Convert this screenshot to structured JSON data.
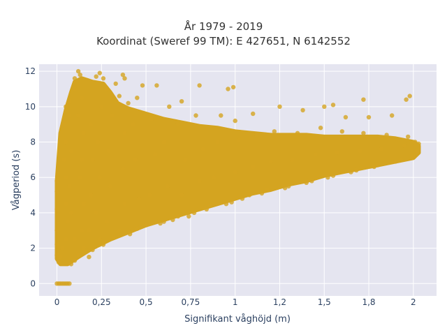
{
  "chart_data": {
    "type": "scatter",
    "title_lines": [
      "År 1979 - 2019",
      "Koordinat (Sweref 99 TM): E 427651, N 6142552"
    ],
    "xlabel": "Signifikant våghöjd (m)",
    "ylabel": "Vågperiod (s)",
    "xlim": [
      -0.1,
      2.13
    ],
    "ylim": [
      -0.7,
      12.4
    ],
    "x_ticks": [
      0,
      0.25,
      0.5,
      0.75,
      1,
      1.25,
      1.5,
      1.75,
      2
    ],
    "x_tick_labels": [
      "0",
      "0,25",
      "0,5",
      "0,75",
      "1",
      "1,2",
      "1,5",
      "1,8",
      "2"
    ],
    "y_ticks": [
      0,
      2,
      4,
      6,
      8,
      10,
      12
    ],
    "y_tick_labels": [
      "0",
      "2",
      "4",
      "6",
      "8",
      "10",
      "12"
    ],
    "grid": true,
    "background": "#e5e5f0",
    "marker_color": "#d4a420",
    "series": [
      {
        "points": [
          [
            0.0,
            0.0
          ],
          [
            0.01,
            0.0
          ],
          [
            0.02,
            0.0
          ],
          [
            0.03,
            0.0
          ],
          [
            0.04,
            0.0
          ],
          [
            0.05,
            0.0
          ],
          [
            0.06,
            0.0
          ],
          [
            0.07,
            0.0
          ],
          [
            0.0,
            1.6
          ],
          [
            0.0,
            2.2
          ],
          [
            0.0,
            3.0
          ],
          [
            0.0,
            4.2
          ],
          [
            0.0,
            5.2
          ],
          [
            0.0,
            5.8
          ],
          [
            0.01,
            1.2
          ],
          [
            0.02,
            1.5
          ],
          [
            0.03,
            2.0
          ],
          [
            0.05,
            2.5
          ],
          [
            0.06,
            3.5
          ],
          [
            0.05,
            4.5
          ],
          [
            0.05,
            6.0
          ],
          [
            0.04,
            7.0
          ],
          [
            0.05,
            8.0
          ],
          [
            0.04,
            9.0
          ],
          [
            0.05,
            10.0
          ],
          [
            0.08,
            1.1
          ],
          [
            0.1,
            1.3
          ],
          [
            0.12,
            1.6
          ],
          [
            0.1,
            2.5
          ],
          [
            0.08,
            4.0
          ],
          [
            0.07,
            5.5
          ],
          [
            0.08,
            7.5
          ],
          [
            0.07,
            9.5
          ],
          [
            0.07,
            10.3
          ],
          [
            0.1,
            11.0
          ],
          [
            0.1,
            11.6
          ],
          [
            0.12,
            12.0
          ],
          [
            0.13,
            11.8
          ],
          [
            0.14,
            10.5
          ],
          [
            0.12,
            9.5
          ],
          [
            0.15,
            8.5
          ],
          [
            0.14,
            7.0
          ],
          [
            0.13,
            6.0
          ],
          [
            0.15,
            4.5
          ],
          [
            0.14,
            3.0
          ],
          [
            0.15,
            2.0
          ],
          [
            0.18,
            1.5
          ],
          [
            0.2,
            1.9
          ],
          [
            0.18,
            3.0
          ],
          [
            0.19,
            5.0
          ],
          [
            0.2,
            7.0
          ],
          [
            0.19,
            9.0
          ],
          [
            0.22,
            11.7
          ],
          [
            0.24,
            11.9
          ],
          [
            0.26,
            11.6
          ],
          [
            0.28,
            11.0
          ],
          [
            0.25,
            10.0
          ],
          [
            0.23,
            8.0
          ],
          [
            0.24,
            6.0
          ],
          [
            0.22,
            4.0
          ],
          [
            0.24,
            2.5
          ],
          [
            0.26,
            2.2
          ],
          [
            0.28,
            3.5
          ],
          [
            0.3,
            5.5
          ],
          [
            0.29,
            7.5
          ],
          [
            0.31,
            9.5
          ],
          [
            0.33,
            11.3
          ],
          [
            0.35,
            10.6
          ],
          [
            0.32,
            2.6
          ],
          [
            0.35,
            3.0
          ],
          [
            0.38,
            4.5
          ],
          [
            0.37,
            6.5
          ],
          [
            0.38,
            8.5
          ],
          [
            0.4,
            10.2
          ],
          [
            0.37,
            11.8
          ],
          [
            0.38,
            11.6
          ],
          [
            0.41,
            2.8
          ],
          [
            0.45,
            3.1
          ],
          [
            0.46,
            4.8
          ],
          [
            0.44,
            7.0
          ],
          [
            0.43,
            9.0
          ],
          [
            0.45,
            10.5
          ],
          [
            0.48,
            11.2
          ],
          [
            0.5,
            3.3
          ],
          [
            0.52,
            5.0
          ],
          [
            0.55,
            7.3
          ],
          [
            0.53,
            9.3
          ],
          [
            0.56,
            11.2
          ],
          [
            0.58,
            3.4
          ],
          [
            0.6,
            3.5
          ],
          [
            0.62,
            5.5
          ],
          [
            0.6,
            8.0
          ],
          [
            0.63,
            10.0
          ],
          [
            0.65,
            3.6
          ],
          [
            0.68,
            3.8
          ],
          [
            0.7,
            5.0
          ],
          [
            0.72,
            7.0
          ],
          [
            0.68,
            9.0
          ],
          [
            0.7,
            10.3
          ],
          [
            0.74,
            3.8
          ],
          [
            0.77,
            4.0
          ],
          [
            0.8,
            5.8
          ],
          [
            0.82,
            7.6
          ],
          [
            0.78,
            9.5
          ],
          [
            0.8,
            11.2
          ],
          [
            0.84,
            4.2
          ],
          [
            0.86,
            4.4
          ],
          [
            0.88,
            6.0
          ],
          [
            0.9,
            8.0
          ],
          [
            0.92,
            9.5
          ],
          [
            0.95,
            4.5
          ],
          [
            0.98,
            4.6
          ],
          [
            1.0,
            6.3
          ],
          [
            1.02,
            8.1
          ],
          [
            1.0,
            9.2
          ],
          [
            0.96,
            11.0
          ],
          [
            0.99,
            11.1
          ],
          [
            1.04,
            4.8
          ],
          [
            1.08,
            5.0
          ],
          [
            1.1,
            6.6
          ],
          [
            1.12,
            8.4
          ],
          [
            1.1,
            9.6
          ],
          [
            1.15,
            5.1
          ],
          [
            1.18,
            5.3
          ],
          [
            1.2,
            6.9
          ],
          [
            1.22,
            8.6
          ],
          [
            1.25,
            10.0
          ],
          [
            1.28,
            5.4
          ],
          [
            1.3,
            5.5
          ],
          [
            1.32,
            7.0
          ],
          [
            1.35,
            8.5
          ],
          [
            1.38,
            9.8
          ],
          [
            1.4,
            5.7
          ],
          [
            1.43,
            5.8
          ],
          [
            1.45,
            7.3
          ],
          [
            1.48,
            8.8
          ],
          [
            1.5,
            10.0
          ],
          [
            1.52,
            6.0
          ],
          [
            1.55,
            6.1
          ],
          [
            1.57,
            7.4
          ],
          [
            1.6,
            8.6
          ],
          [
            1.62,
            9.4
          ],
          [
            1.65,
            6.3
          ],
          [
            1.68,
            6.4
          ],
          [
            1.7,
            7.5
          ],
          [
            1.72,
            8.5
          ],
          [
            1.75,
            9.4
          ],
          [
            1.78,
            6.6
          ],
          [
            1.8,
            6.7
          ],
          [
            1.82,
            7.6
          ],
          [
            1.85,
            8.4
          ],
          [
            1.88,
            9.5
          ],
          [
            1.9,
            6.9
          ],
          [
            1.93,
            7.0
          ],
          [
            1.95,
            7.8
          ],
          [
            1.97,
            8.3
          ],
          [
            2.0,
            7.2
          ],
          [
            2.02,
            7.5
          ],
          [
            2.03,
            7.9
          ],
          [
            2.01,
            8.0
          ],
          [
            1.98,
            10.6
          ],
          [
            1.96,
            10.4
          ],
          [
            1.72,
            10.4
          ],
          [
            1.55,
            10.1
          ]
        ]
      }
    ]
  }
}
